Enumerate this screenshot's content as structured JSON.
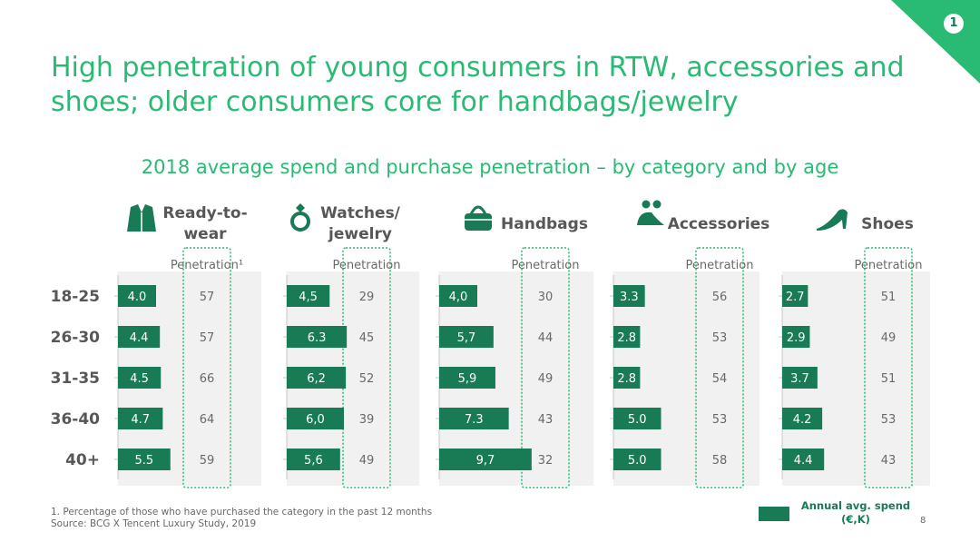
{
  "corner_badge": "1",
  "title": "High penetration of young consumers in RTW, accessories and shoes; older consumers core for handbags/jewelry",
  "subtitle": "2018 average spend and purchase penetration – by category and by age",
  "footnote": "1. Percentage of those who have purchased the category in the past 12 months",
  "source": "Source: BCG X Tencent Luxury Study, 2019",
  "legend_label": "Annual avg. spend (€,K)",
  "page_number": "8",
  "colors": {
    "accent": "#29ba74",
    "bar": "#197a56",
    "panel": "#f1f1f1",
    "text": "#575757",
    "label": "#696969"
  },
  "chart_data": {
    "type": "bar",
    "orientation": "horizontal",
    "categories": [
      "18-25",
      "26-30",
      "31-35",
      "36-40",
      "40+"
    ],
    "panels": [
      {
        "name": "Ready-to-wear",
        "name_lines": [
          "Ready-to-",
          "wear"
        ],
        "icon": "jacket-icon",
        "penetration_label": "Penetration¹",
        "spend": [
          4.0,
          4.4,
          4.5,
          4.7,
          5.5
        ],
        "spend_labels": [
          "4.0",
          "4.4",
          "4.5",
          "4.7",
          "5.5"
        ],
        "penetration": [
          57,
          57,
          66,
          64,
          59
        ]
      },
      {
        "name": "Watches/jewelry",
        "name_lines": [
          "Watches/",
          "jewelry"
        ],
        "icon": "ring-icon",
        "penetration_label": "Penetration",
        "spend": [
          4.5,
          6.3,
          6.2,
          6.0,
          5.6
        ],
        "spend_labels": [
          "4,5",
          "6.3",
          "6,2",
          "6,0",
          "5,6"
        ],
        "penetration": [
          29,
          45,
          52,
          39,
          49
        ]
      },
      {
        "name": "Handbags",
        "name_lines": [
          "Handbags"
        ],
        "icon": "handbag-icon",
        "penetration_label": "Penetration",
        "spend": [
          4.0,
          5.7,
          5.9,
          7.3,
          9.7
        ],
        "spend_labels": [
          "4,0",
          "5,7",
          "5,9",
          "7.3",
          "9,7"
        ],
        "penetration": [
          30,
          44,
          49,
          43,
          32
        ]
      },
      {
        "name": "Accessories",
        "name_lines": [
          "Accessories"
        ],
        "icon": "cap-sunglasses-icon",
        "penetration_label": "Penetration",
        "spend": [
          3.3,
          2.8,
          2.8,
          5.0,
          5.0
        ],
        "spend_labels": [
          "3.3",
          "2.8",
          "2.8",
          "5.0",
          "5.0"
        ],
        "penetration": [
          56,
          53,
          54,
          53,
          58
        ]
      },
      {
        "name": "Shoes",
        "name_lines": [
          "Shoes"
        ],
        "icon": "high-heel-icon",
        "penetration_label": "Penetration",
        "spend": [
          2.7,
          2.9,
          3.7,
          4.2,
          4.4
        ],
        "spend_labels": [
          "2.7",
          "2.9",
          "3.7",
          "4.2",
          "4.4"
        ],
        "penetration": [
          51,
          49,
          51,
          53,
          43
        ]
      }
    ]
  }
}
